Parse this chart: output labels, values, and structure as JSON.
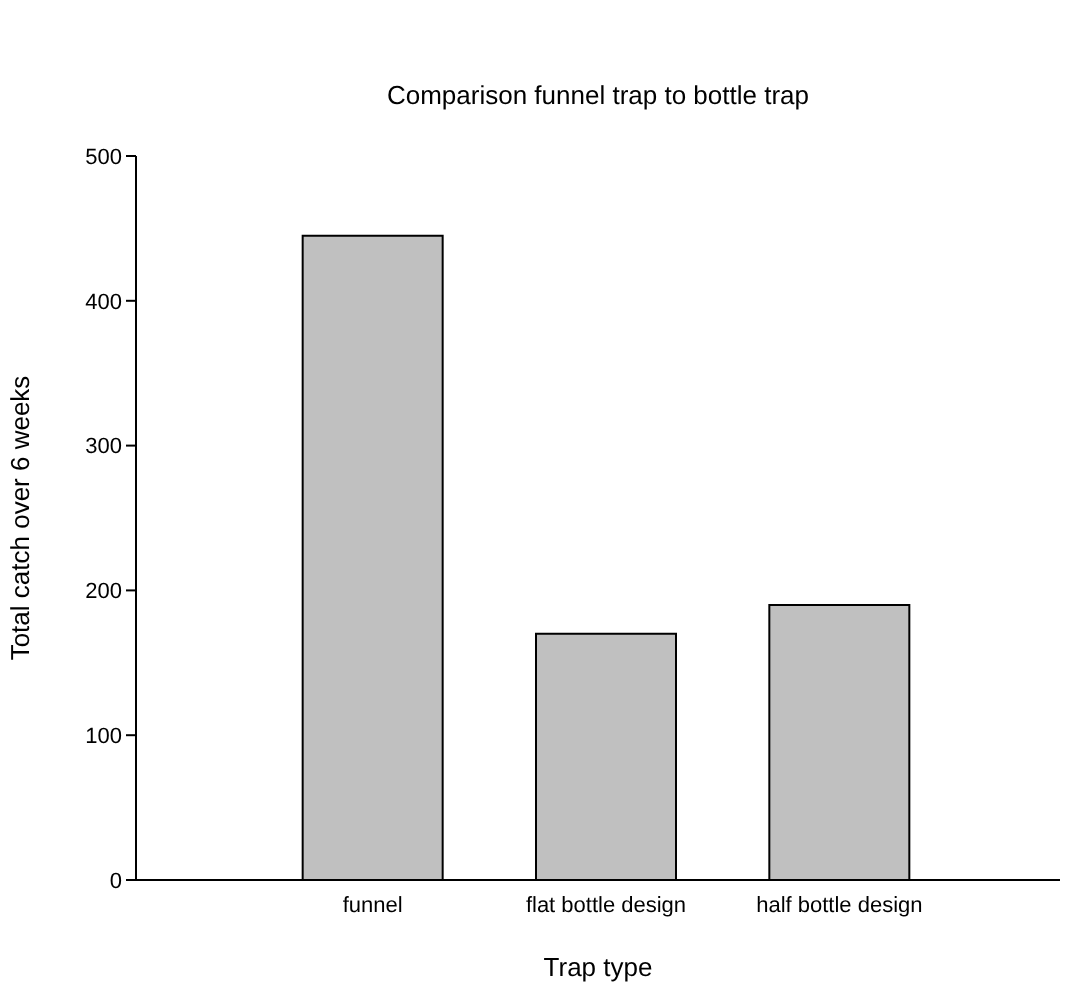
{
  "chart_data": {
    "type": "bar",
    "title": "Comparison funnel trap to bottle trap",
    "xlabel": "Trap type",
    "ylabel": "Total catch over 6 weeks",
    "categories": [
      "funnel",
      "flat bottle design",
      "half bottle design"
    ],
    "values": [
      445,
      170,
      190
    ],
    "color": "#c0c0c0",
    "ylim": [
      0,
      500
    ],
    "yticks": [
      0,
      100,
      200,
      300,
      400,
      500
    ],
    "grid": false,
    "legend": false
  }
}
